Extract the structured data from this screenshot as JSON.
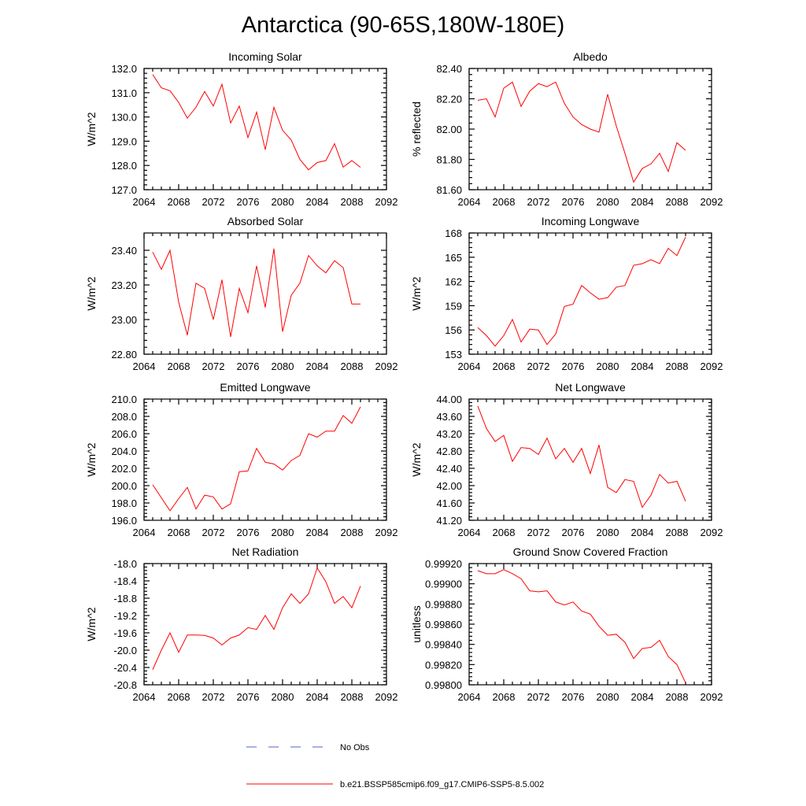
{
  "figure": {
    "title": "Antarctica (90-65S,180W-180E)",
    "legend": [
      {
        "label": "No Obs",
        "color": "#5060c8",
        "style": "dashed"
      },
      {
        "label": "b.e21.BSSP585cmip6.f09_g17.CMIP6-SSP5-8.5.002",
        "color": "#ff0000",
        "style": "solid"
      }
    ]
  },
  "chart_data": [
    {
      "type": "line",
      "title": "Incoming Solar",
      "ylabel": "W/m^2",
      "xlim": [
        2064,
        2092
      ],
      "ylim": [
        127.0,
        132.0
      ],
      "xticks": [
        2064,
        2068,
        2072,
        2076,
        2080,
        2084,
        2088,
        2092
      ],
      "yticks": [
        "127.0",
        "128.0",
        "129.0",
        "130.0",
        "131.0",
        "132.0"
      ],
      "series": [
        {
          "color": "#ff0000",
          "x": [
            2065,
            2066,
            2067,
            2068,
            2069,
            2070,
            2071,
            2072,
            2073,
            2074,
            2075,
            2076,
            2077,
            2078,
            2079,
            2080,
            2081,
            2082,
            2083,
            2084,
            2085,
            2086,
            2087,
            2088,
            2089
          ],
          "values": [
            131.75,
            131.2,
            131.08,
            130.6,
            129.95,
            130.4,
            131.05,
            130.45,
            131.35,
            129.75,
            130.45,
            129.15,
            130.2,
            128.65,
            130.4,
            129.45,
            129.05,
            128.25,
            127.82,
            128.12,
            128.2,
            128.9,
            127.93,
            128.2,
            127.92
          ]
        }
      ]
    },
    {
      "type": "line",
      "title": "Albedo",
      "ylabel": "% reflected",
      "xlim": [
        2064,
        2092
      ],
      "ylim": [
        81.6,
        82.4
      ],
      "xticks": [
        2064,
        2068,
        2072,
        2076,
        2080,
        2084,
        2088,
        2092
      ],
      "yticks": [
        "81.60",
        "81.80",
        "82.00",
        "82.20",
        "82.40"
      ],
      "series": [
        {
          "color": "#ff0000",
          "x": [
            2065,
            2066,
            2067,
            2068,
            2069,
            2070,
            2071,
            2072,
            2073,
            2074,
            2075,
            2076,
            2077,
            2078,
            2079,
            2080,
            2081,
            2082,
            2083,
            2084,
            2085,
            2086,
            2087,
            2088,
            2089
          ],
          "values": [
            82.19,
            82.2,
            82.08,
            82.27,
            82.31,
            82.15,
            82.25,
            82.3,
            82.28,
            82.31,
            82.17,
            82.08,
            82.03,
            82.0,
            81.98,
            82.23,
            82.02,
            81.84,
            81.65,
            81.74,
            81.77,
            81.84,
            81.72,
            81.91,
            81.86
          ]
        }
      ]
    },
    {
      "type": "line",
      "title": "Absorbed Solar",
      "ylabel": "W/m^2",
      "xlim": [
        2064,
        2092
      ],
      "ylim": [
        22.8,
        23.5
      ],
      "xticks": [
        2064,
        2068,
        2072,
        2076,
        2080,
        2084,
        2088,
        2092
      ],
      "yticks": [
        "22.80",
        "23.00",
        "23.20",
        "23.40"
      ],
      "series": [
        {
          "color": "#ff0000",
          "x": [
            2065,
            2066,
            2067,
            2068,
            2069,
            2070,
            2071,
            2072,
            2073,
            2074,
            2075,
            2076,
            2077,
            2078,
            2079,
            2080,
            2081,
            2082,
            2083,
            2084,
            2085,
            2086,
            2087,
            2088,
            2089
          ],
          "values": [
            23.39,
            23.29,
            23.4,
            23.1,
            22.91,
            23.21,
            23.18,
            23.0,
            23.23,
            22.9,
            23.18,
            23.04,
            23.31,
            23.07,
            23.41,
            22.93,
            23.14,
            23.21,
            23.37,
            23.31,
            23.27,
            23.34,
            23.3,
            23.09,
            23.09
          ]
        }
      ]
    },
    {
      "type": "line",
      "title": "Incoming Longwave",
      "ylabel": "W/m^2",
      "xlim": [
        2064,
        2092
      ],
      "ylim": [
        153,
        168
      ],
      "xticks": [
        2064,
        2068,
        2072,
        2076,
        2080,
        2084,
        2088,
        2092
      ],
      "yticks": [
        "153",
        "156",
        "159",
        "162",
        "165",
        "168"
      ],
      "series": [
        {
          "color": "#ff0000",
          "x": [
            2065,
            2066,
            2067,
            2068,
            2069,
            2070,
            2071,
            2072,
            2073,
            2074,
            2075,
            2076,
            2077,
            2078,
            2079,
            2080,
            2081,
            2082,
            2083,
            2084,
            2085,
            2086,
            2087,
            2088,
            2089
          ],
          "values": [
            156.3,
            155.3,
            154.0,
            155.3,
            157.3,
            154.5,
            156.1,
            156.0,
            154.2,
            155.5,
            158.9,
            159.2,
            161.5,
            160.6,
            159.8,
            160.0,
            161.3,
            161.5,
            164.0,
            164.2,
            164.7,
            164.2,
            166.1,
            165.2,
            167.5
          ]
        }
      ]
    },
    {
      "type": "line",
      "title": "Emitted Longwave",
      "ylabel": "W/m^2",
      "xlim": [
        2064,
        2092
      ],
      "ylim": [
        196.0,
        210.0
      ],
      "xticks": [
        2064,
        2068,
        2072,
        2076,
        2080,
        2084,
        2088,
        2092
      ],
      "yticks": [
        "196.0",
        "198.0",
        "200.0",
        "202.0",
        "204.0",
        "206.0",
        "208.0",
        "210.0"
      ],
      "series": [
        {
          "color": "#ff0000",
          "x": [
            2065,
            2066,
            2067,
            2068,
            2069,
            2070,
            2071,
            2072,
            2073,
            2074,
            2075,
            2076,
            2077,
            2078,
            2079,
            2080,
            2081,
            2082,
            2083,
            2084,
            2085,
            2086,
            2087,
            2088,
            2089
          ],
          "values": [
            200.1,
            198.6,
            197.1,
            198.5,
            199.8,
            197.3,
            198.9,
            198.7,
            197.3,
            197.9,
            201.6,
            201.7,
            204.3,
            202.7,
            202.5,
            201.8,
            202.9,
            203.5,
            206.0,
            205.6,
            206.3,
            206.3,
            208.1,
            207.2,
            209.1
          ]
        }
      ]
    },
    {
      "type": "line",
      "title": "Net Longwave",
      "ylabel": "W/m^2",
      "xlim": [
        2064,
        2092
      ],
      "ylim": [
        41.2,
        44.0
      ],
      "xticks": [
        2064,
        2068,
        2072,
        2076,
        2080,
        2084,
        2088,
        2092
      ],
      "yticks": [
        "41.20",
        "41.60",
        "42.00",
        "42.40",
        "42.80",
        "43.20",
        "43.60",
        "44.00"
      ],
      "series": [
        {
          "color": "#ff0000",
          "x": [
            2065,
            2066,
            2067,
            2068,
            2069,
            2070,
            2071,
            2072,
            2073,
            2074,
            2075,
            2076,
            2077,
            2078,
            2079,
            2080,
            2081,
            2082,
            2083,
            2084,
            2085,
            2086,
            2087,
            2088,
            2089
          ],
          "values": [
            43.84,
            43.32,
            43.02,
            43.16,
            42.56,
            42.88,
            42.86,
            42.72,
            43.1,
            42.62,
            42.86,
            42.54,
            42.86,
            42.28,
            42.94,
            41.96,
            41.84,
            42.14,
            42.1,
            41.5,
            41.78,
            42.26,
            42.06,
            42.1,
            41.64
          ]
        }
      ]
    },
    {
      "type": "line",
      "title": "Net Radiation",
      "ylabel": "W/m^2",
      "xlim": [
        2064,
        2092
      ],
      "ylim": [
        -20.8,
        -18.0
      ],
      "xticks": [
        2064,
        2068,
        2072,
        2076,
        2080,
        2084,
        2088,
        2092
      ],
      "yticks": [
        "-20.8",
        "-20.4",
        "-20.0",
        "-19.6",
        "-19.2",
        "-18.8",
        "-18.4",
        "-18.0"
      ],
      "series": [
        {
          "color": "#ff0000",
          "x": [
            2065,
            2066,
            2067,
            2068,
            2069,
            2070,
            2071,
            2072,
            2073,
            2074,
            2075,
            2076,
            2077,
            2078,
            2079,
            2080,
            2081,
            2082,
            2083,
            2084,
            2085,
            2086,
            2087,
            2088,
            2089
          ],
          "values": [
            -20.45,
            -20.0,
            -19.6,
            -20.05,
            -19.65,
            -19.65,
            -19.66,
            -19.72,
            -19.88,
            -19.72,
            -19.65,
            -19.48,
            -19.52,
            -19.2,
            -19.52,
            -19.02,
            -18.7,
            -18.92,
            -18.7,
            -18.1,
            -18.42,
            -18.92,
            -18.76,
            -19.02,
            -18.52
          ]
        }
      ]
    },
    {
      "type": "line",
      "title": "Ground Snow Covered Fraction",
      "ylabel": "unitless",
      "xlim": [
        2064,
        2092
      ],
      "ylim": [
        0.998,
        0.9992
      ],
      "xticks": [
        2064,
        2068,
        2072,
        2076,
        2080,
        2084,
        2088,
        2092
      ],
      "yticks": [
        "0.99800",
        "0.99820",
        "0.99840",
        "0.99860",
        "0.99880",
        "0.99900",
        "0.99920"
      ],
      "series": [
        {
          "color": "#ff0000",
          "x": [
            2065,
            2066,
            2067,
            2068,
            2069,
            2070,
            2071,
            2072,
            2073,
            2074,
            2075,
            2076,
            2077,
            2078,
            2079,
            2080,
            2081,
            2082,
            2083,
            2084,
            2085,
            2086,
            2087,
            2088,
            2089
          ],
          "values": [
            0.99913,
            0.9991,
            0.9991,
            0.99914,
            0.9991,
            0.99905,
            0.99893,
            0.99892,
            0.99893,
            0.99882,
            0.99879,
            0.99882,
            0.99873,
            0.9987,
            0.99858,
            0.99849,
            0.9985,
            0.99842,
            0.99826,
            0.99836,
            0.99837,
            0.99844,
            0.99828,
            0.9982,
            0.99802
          ]
        }
      ]
    }
  ]
}
